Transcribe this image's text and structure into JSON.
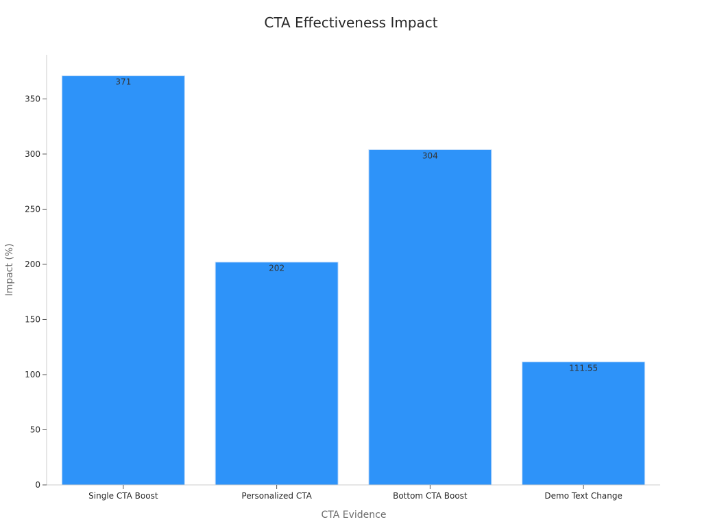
{
  "chart_data": {
    "type": "bar",
    "title": "CTA Effectiveness Impact",
    "xlabel": "CTA Evidence",
    "ylabel": "Impact (%)",
    "categories": [
      "Single CTA Boost",
      "Personalized CTA",
      "Bottom CTA Boost",
      "Demo Text Change"
    ],
    "values": [
      371,
      202,
      304,
      111.55
    ],
    "data_labels": [
      "371",
      "202",
      "304",
      "111.55"
    ],
    "ylim": [
      0,
      390
    ],
    "yticks": [
      0,
      50,
      100,
      150,
      200,
      250,
      300,
      350
    ],
    "grid": false,
    "legend": "none",
    "bar_color": "#2e93f9"
  }
}
